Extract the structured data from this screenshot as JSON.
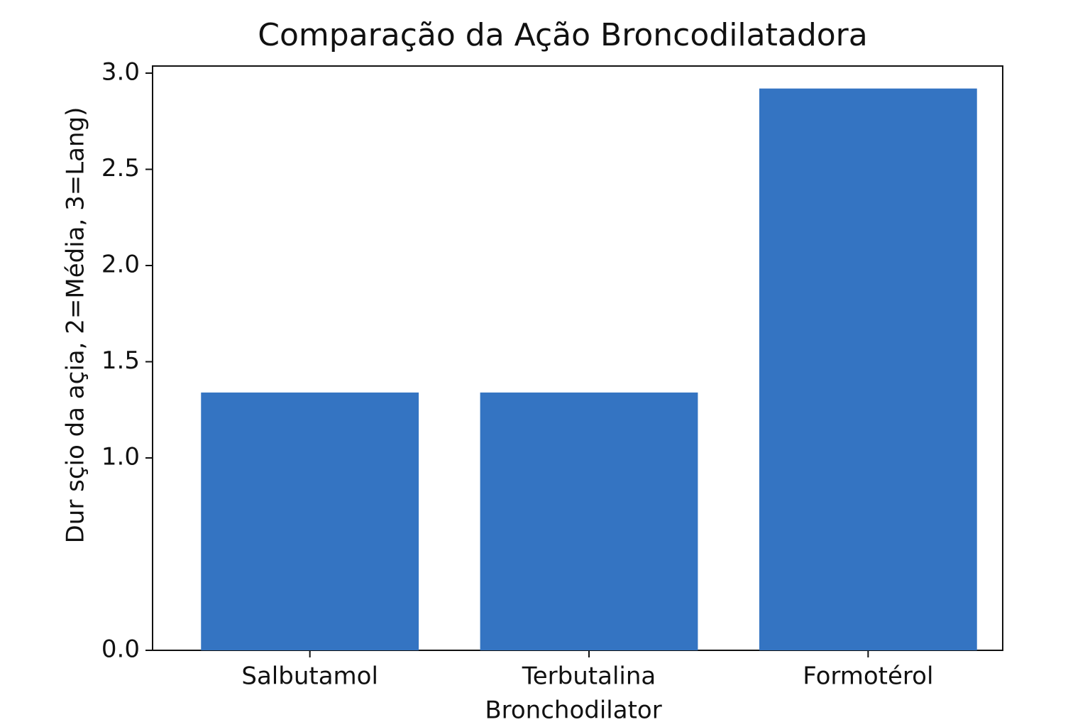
{
  "chart_data": {
    "type": "bar",
    "title": "Comparação da Ação Broncodilatadora",
    "x_label": "Bronchodilator",
    "y_label": "Dur sçio da açia, 2=Média, 3=Lang)",
    "categories": [
      "Salbutamol",
      "Terbutalina",
      "Formotérol"
    ],
    "values": [
      1.34,
      1.34,
      2.92
    ],
    "color": "#3474c2",
    "ylim": [
      0,
      3.0
    ],
    "yticks": [
      {
        "value": 0,
        "label": "0.0"
      },
      {
        "value": 1,
        "label": "1.0"
      },
      1.5,
      {
        "value": 2,
        "label": "2.0"
      },
      2.5,
      {
        "value": 3,
        "label": "3.0"
      }
    ],
    "grid": false
  }
}
